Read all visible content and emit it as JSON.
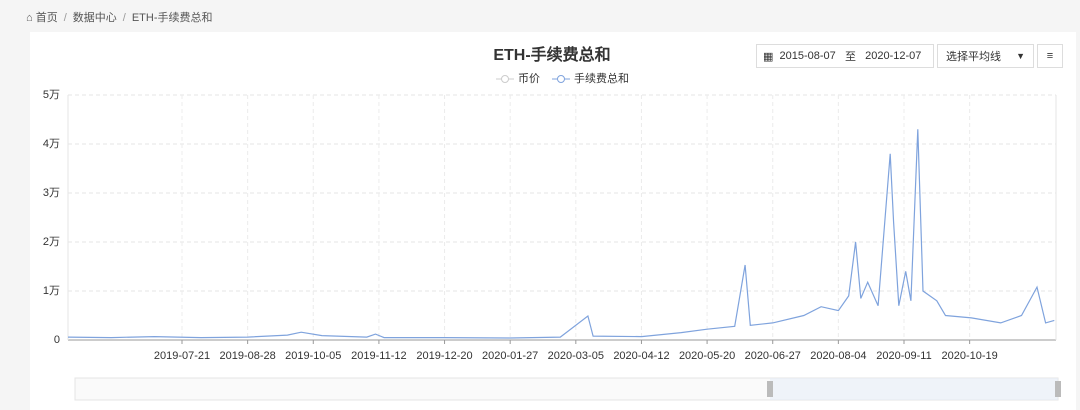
{
  "breadcrumb": [
    "首页",
    "数据中心",
    "ETH-手续费总和"
  ],
  "controls": {
    "start_date": "2015-08-07",
    "separator": "至",
    "end_date": "2020-12-07",
    "average_select": "选择平均线"
  },
  "chart_data": {
    "type": "line",
    "title": "ETH-手续费总和",
    "hidden_series": [
      "币价"
    ],
    "series": [
      {
        "name": "手续费总和",
        "color": "#7fa3dd",
        "x": [
          "2019-05-16",
          "2019-06-10",
          "2019-07-05",
          "2019-08-01",
          "2019-08-28",
          "2019-09-20",
          "2019-09-28",
          "2019-10-10",
          "2019-11-05",
          "2019-11-10",
          "2019-11-15",
          "2019-12-20",
          "2020-01-27",
          "2020-02-25",
          "2020-03-12",
          "2020-03-15",
          "2020-04-12",
          "2020-05-05",
          "2020-05-20",
          "2020-06-05",
          "2020-06-11",
          "2020-06-14",
          "2020-06-27",
          "2020-07-15",
          "2020-07-25",
          "2020-08-04",
          "2020-08-10",
          "2020-08-14",
          "2020-08-17",
          "2020-08-21",
          "2020-08-27",
          "2020-09-03",
          "2020-09-05",
          "2020-09-08",
          "2020-09-12",
          "2020-09-15",
          "2020-09-19",
          "2020-09-22",
          "2020-09-30",
          "2020-10-05",
          "2020-10-20",
          "2020-11-06",
          "2020-11-18",
          "2020-11-27",
          "2020-12-02",
          "2020-12-07"
        ],
        "values": [
          600,
          500,
          700,
          500,
          600,
          1000,
          1600,
          900,
          600,
          1200,
          500,
          500,
          400,
          600,
          4900,
          800,
          700,
          1500,
          2200,
          2800,
          15300,
          3000,
          3500,
          5000,
          6800,
          6000,
          9000,
          20000,
          8500,
          11800,
          7000,
          38000,
          24000,
          7000,
          14000,
          8000,
          43000,
          10000,
          8000,
          5000,
          4500,
          3500,
          5000,
          10800,
          3500,
          4000
        ]
      }
    ],
    "xlim": [
      "2019-05-16",
      "2020-12-08"
    ],
    "xticks": [
      "2019-07-21",
      "2019-08-28",
      "2019-10-05",
      "2019-11-12",
      "2019-12-20",
      "2020-01-27",
      "2020-03-05",
      "2020-04-12",
      "2020-05-20",
      "2020-06-27",
      "2020-08-04",
      "2020-09-11",
      "2020-10-19"
    ],
    "ylim": [
      0,
      50000
    ],
    "yticks": [
      0,
      {
        "value": 10000,
        "label": "1万"
      },
      {
        "value": 20000,
        "label": "2万"
      },
      {
        "value": 30000,
        "label": "3万"
      },
      {
        "value": 40000,
        "label": "4万"
      },
      {
        "value": 50000,
        "label": "5万"
      }
    ],
    "grid": true
  }
}
